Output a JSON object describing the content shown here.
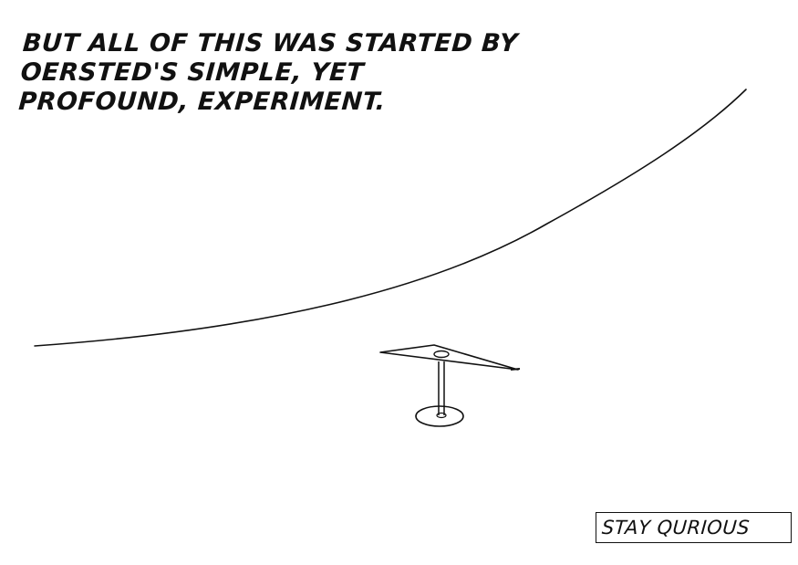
{
  "caption": {
    "line1": "BUT ALL OF THIS WAS STARTED BY",
    "line2": "OERSTED'S SIMPLE, YET",
    "line3": "PROFOUND, EXPERIMENT."
  },
  "tagline": {
    "text": "STAY QURIOUS"
  },
  "colors": {
    "ink": "#111111",
    "background": "#ffffff"
  },
  "illustration": {
    "icon": "compass-needle-icon"
  }
}
